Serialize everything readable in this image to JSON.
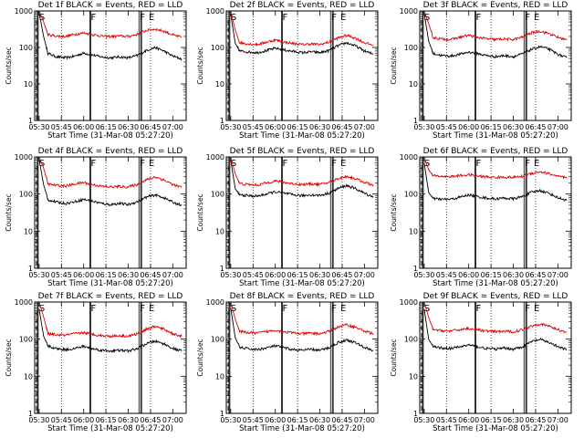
{
  "colors": {
    "events": "#000000",
    "lld": "#e00000",
    "frame": "#000000"
  },
  "chart_data": [
    {
      "type": "line",
      "title": "Det 1f BLACK = Events, RED = LLD",
      "xlabel": "Start Time (31-Mar-08 05:27:20)",
      "ylabel": "Counts/sec",
      "x_ticks": [
        "05:30",
        "05:45",
        "06:00",
        "06:15",
        "06:30",
        "06:45",
        "07:00"
      ],
      "y_ticks": [
        "1",
        "10",
        "100",
        "1000"
      ],
      "y_scale": "log",
      "ylim": [
        1,
        1000
      ],
      "letters": [
        "S",
        "F",
        "F",
        "E"
      ],
      "series": [
        {
          "color": "black",
          "x": [
            5.5,
            5.55,
            5.6,
            5.7,
            5.8,
            5.9,
            6.0,
            6.1,
            6.2,
            6.3,
            6.4,
            6.5,
            6.6,
            6.7,
            6.8,
            6.9,
            7.0,
            7.1
          ],
          "y": [
            900,
            200,
            68,
            55,
            52,
            58,
            70,
            62,
            55,
            52,
            55,
            52,
            60,
            82,
            100,
            80,
            58,
            48
          ]
        },
        {
          "color": "red",
          "x": [
            5.5,
            5.55,
            5.6,
            5.7,
            5.8,
            5.9,
            6.0,
            6.1,
            6.2,
            6.3,
            6.4,
            6.5,
            6.6,
            6.7,
            6.8,
            6.9,
            7.0,
            7.1
          ],
          "y": [
            1000,
            500,
            220,
            205,
            200,
            230,
            250,
            225,
            205,
            200,
            205,
            200,
            230,
            290,
            320,
            280,
            220,
            190
          ]
        }
      ]
    },
    {
      "type": "line",
      "title": "Det 2f BLACK = Events, RED = LLD",
      "xlabel": "Start Time (31-Mar-08 05:27:20)",
      "ylabel": "Counts/sec",
      "x_ticks": [
        "05:30",
        "05:45",
        "06:00",
        "06:15",
        "06:30",
        "06:45",
        "07:00"
      ],
      "y_ticks": [
        "1",
        "10",
        "100",
        "1000"
      ],
      "y_scale": "log",
      "ylim": [
        1,
        1000
      ],
      "letters": [
        "S",
        "F",
        "F",
        "E"
      ],
      "series": [
        {
          "color": "black",
          "x": [
            5.5,
            5.55,
            5.6,
            5.7,
            5.8,
            5.9,
            6.0,
            6.1,
            6.2,
            6.3,
            6.4,
            6.5,
            6.6,
            6.7,
            6.8,
            6.9,
            7.0,
            7.1
          ],
          "y": [
            800,
            130,
            80,
            75,
            72,
            82,
            95,
            85,
            78,
            72,
            76,
            72,
            82,
            110,
            135,
            110,
            80,
            65
          ]
        },
        {
          "color": "red",
          "x": [
            5.5,
            5.55,
            5.6,
            5.7,
            5.8,
            5.9,
            6.0,
            6.1,
            6.2,
            6.3,
            6.4,
            6.5,
            6.6,
            6.7,
            6.8,
            6.9,
            7.0,
            7.1
          ],
          "y": [
            1000,
            300,
            135,
            125,
            120,
            140,
            160,
            140,
            128,
            120,
            125,
            120,
            140,
            180,
            215,
            180,
            135,
            115
          ]
        }
      ]
    },
    {
      "type": "line",
      "title": "Det 3f BLACK = Events, RED = LLD",
      "xlabel": "Start Time (31-Mar-08 05:27:20)",
      "ylabel": "Counts/sec",
      "x_ticks": [
        "05:30",
        "05:45",
        "06:00",
        "06:15",
        "06:30",
        "06:45",
        "07:00"
      ],
      "y_ticks": [
        "1",
        "10",
        "100",
        "1000"
      ],
      "y_scale": "log",
      "ylim": [
        1,
        1000
      ],
      "letters": [
        "S",
        "F",
        "F",
        "E"
      ],
      "series": [
        {
          "color": "black",
          "x": [
            5.5,
            5.55,
            5.6,
            5.7,
            5.8,
            5.9,
            6.0,
            6.1,
            6.2,
            6.3,
            6.4,
            6.5,
            6.6,
            6.7,
            6.8,
            6.9,
            7.0,
            7.1
          ],
          "y": [
            850,
            150,
            68,
            60,
            58,
            65,
            75,
            68,
            60,
            56,
            60,
            56,
            66,
            88,
            105,
            90,
            65,
            52
          ]
        },
        {
          "color": "red",
          "x": [
            5.5,
            5.55,
            5.6,
            5.7,
            5.8,
            5.9,
            6.0,
            6.1,
            6.2,
            6.3,
            6.4,
            6.5,
            6.6,
            6.7,
            6.8,
            6.9,
            7.0,
            7.1
          ],
          "y": [
            1000,
            450,
            185,
            170,
            165,
            190,
            215,
            190,
            172,
            165,
            170,
            165,
            190,
            250,
            280,
            240,
            190,
            160
          ]
        }
      ]
    },
    {
      "type": "line",
      "title": "Det 4f BLACK = Events, RED = LLD",
      "xlabel": "Start Time (31-Mar-08 05:27:20)",
      "ylabel": "Counts/sec",
      "x_ticks": [
        "05:30",
        "05:45",
        "06:00",
        "06:15",
        "06:30",
        "06:45",
        "07:00"
      ],
      "y_ticks": [
        "1",
        "10",
        "100",
        "1000"
      ],
      "y_scale": "log",
      "ylim": [
        1,
        1000
      ],
      "letters": [
        "S",
        "F",
        "F",
        "E"
      ],
      "series": [
        {
          "color": "black",
          "x": [
            5.5,
            5.55,
            5.6,
            5.7,
            5.8,
            5.9,
            6.0,
            6.1,
            6.2,
            6.3,
            6.4,
            6.5,
            6.6,
            6.7,
            6.8,
            6.9,
            7.0,
            7.1
          ],
          "y": [
            850,
            180,
            70,
            60,
            56,
            62,
            72,
            64,
            56,
            52,
            56,
            52,
            62,
            82,
            95,
            80,
            60,
            50
          ]
        },
        {
          "color": "red",
          "x": [
            5.5,
            5.55,
            5.6,
            5.7,
            5.8,
            5.9,
            6.0,
            6.1,
            6.2,
            6.3,
            6.4,
            6.5,
            6.6,
            6.7,
            6.8,
            6.9,
            7.0,
            7.1
          ],
          "y": [
            1000,
            500,
            185,
            170,
            165,
            185,
            205,
            180,
            162,
            155,
            160,
            155,
            180,
            240,
            290,
            240,
            180,
            150
          ]
        }
      ]
    },
    {
      "type": "line",
      "title": "Det 5f BLACK = Events, RED = LLD",
      "xlabel": "Start Time (31-Mar-08 05:27:20)",
      "ylabel": "Counts/sec",
      "x_ticks": [
        "05:30",
        "05:45",
        "06:00",
        "06:15",
        "06:30",
        "06:45",
        "07:00"
      ],
      "y_ticks": [
        "1",
        "10",
        "100",
        "1000"
      ],
      "y_scale": "log",
      "ylim": [
        1,
        1000
      ],
      "letters": [
        "S",
        "F",
        "F",
        "E"
      ],
      "series": [
        {
          "color": "black",
          "x": [
            5.5,
            5.55,
            5.6,
            5.7,
            5.8,
            5.9,
            6.0,
            6.1,
            6.2,
            6.3,
            6.4,
            6.5,
            6.6,
            6.7,
            6.8,
            6.9,
            7.0,
            7.1
          ],
          "y": [
            800,
            140,
            95,
            90,
            88,
            100,
            115,
            105,
            95,
            90,
            95,
            92,
            105,
            140,
            170,
            140,
            105,
            85
          ]
        },
        {
          "color": "red",
          "x": [
            5.5,
            5.55,
            5.6,
            5.7,
            5.8,
            5.9,
            6.0,
            6.1,
            6.2,
            6.3,
            6.4,
            6.5,
            6.6,
            6.7,
            6.8,
            6.9,
            7.0,
            7.1
          ],
          "y": [
            1000,
            350,
            190,
            180,
            175,
            200,
            225,
            205,
            190,
            180,
            188,
            182,
            205,
            260,
            300,
            260,
            205,
            175
          ]
        }
      ]
    },
    {
      "type": "line",
      "title": "Det 6f BLACK = Events, RED = LLD",
      "xlabel": "Start Time (31-Mar-08 05:27:20)",
      "ylabel": "Counts/sec",
      "x_ticks": [
        "05:30",
        "05:45",
        "06:00",
        "06:15",
        "06:30",
        "06:45",
        "07:00"
      ],
      "y_ticks": [
        "1",
        "10",
        "100",
        "1000"
      ],
      "y_scale": "log",
      "ylim": [
        1,
        1000
      ],
      "letters": [
        "S",
        "F",
        "F",
        "E"
      ],
      "series": [
        {
          "color": "black",
          "x": [
            5.5,
            5.55,
            5.6,
            5.7,
            5.8,
            5.9,
            6.0,
            6.1,
            6.2,
            6.3,
            6.4,
            6.5,
            6.6,
            6.7,
            6.8,
            6.9,
            7.0,
            7.1
          ],
          "y": [
            700,
            110,
            75,
            72,
            72,
            82,
            95,
            85,
            78,
            74,
            78,
            74,
            85,
            110,
            125,
            105,
            80,
            68
          ]
        },
        {
          "color": "red",
          "x": [
            5.5,
            5.55,
            5.6,
            5.7,
            5.8,
            5.9,
            6.0,
            6.1,
            6.2,
            6.3,
            6.4,
            6.5,
            6.6,
            6.7,
            6.8,
            6.9,
            7.0,
            7.1
          ],
          "y": [
            1000,
            450,
            310,
            300,
            295,
            315,
            330,
            305,
            290,
            280,
            285,
            280,
            300,
            360,
            400,
            355,
            300,
            270
          ]
        }
      ]
    },
    {
      "type": "line",
      "title": "Det 7f BLACK = Events, RED = LLD",
      "xlabel": "Start Time (31-Mar-08 05:27:20)",
      "ylabel": "Counts/sec",
      "x_ticks": [
        "05:30",
        "05:45",
        "06:00",
        "06:15",
        "06:30",
        "06:45",
        "07:00"
      ],
      "y_ticks": [
        "1",
        "10",
        "100",
        "1000"
      ],
      "y_scale": "log",
      "ylim": [
        1,
        1000
      ],
      "letters": [
        "S",
        "F",
        "F",
        "E"
      ],
      "series": [
        {
          "color": "black",
          "x": [
            5.5,
            5.55,
            5.6,
            5.7,
            5.8,
            5.9,
            6.0,
            6.1,
            6.2,
            6.3,
            6.4,
            6.5,
            6.6,
            6.7,
            6.8,
            6.9,
            7.0,
            7.1
          ],
          "y": [
            650,
            120,
            65,
            55,
            52,
            56,
            64,
            55,
            50,
            48,
            50,
            48,
            55,
            75,
            88,
            75,
            56,
            48
          ]
        },
        {
          "color": "red",
          "x": [
            5.5,
            5.55,
            5.6,
            5.7,
            5.8,
            5.9,
            6.0,
            6.1,
            6.2,
            6.3,
            6.4,
            6.5,
            6.6,
            6.7,
            6.8,
            6.9,
            7.0,
            7.1
          ],
          "y": [
            1000,
            400,
            140,
            130,
            128,
            140,
            150,
            135,
            125,
            120,
            125,
            120,
            138,
            185,
            220,
            185,
            140,
            120
          ]
        }
      ]
    },
    {
      "type": "line",
      "title": "Det 8f BLACK = Events, RED = LLD",
      "xlabel": "Start Time (31-Mar-08 05:27:20)",
      "ylabel": "Counts/sec",
      "x_ticks": [
        "05:30",
        "05:45",
        "06:00",
        "06:15",
        "06:30",
        "06:45",
        "07:00"
      ],
      "y_ticks": [
        "1",
        "10",
        "100",
        "1000"
      ],
      "y_scale": "log",
      "ylim": [
        1,
        1000
      ],
      "letters": [
        "S",
        "F",
        "F",
        "E"
      ],
      "series": [
        {
          "color": "black",
          "x": [
            5.5,
            5.55,
            5.6,
            5.7,
            5.8,
            5.9,
            6.0,
            6.1,
            6.2,
            6.3,
            6.4,
            6.5,
            6.6,
            6.7,
            6.8,
            6.9,
            7.0,
            7.1
          ],
          "y": [
            700,
            110,
            60,
            55,
            52,
            58,
            66,
            58,
            52,
            50,
            53,
            50,
            58,
            80,
            95,
            80,
            60,
            50
          ]
        },
        {
          "color": "red",
          "x": [
            5.5,
            5.55,
            5.6,
            5.7,
            5.8,
            5.9,
            6.0,
            6.1,
            6.2,
            6.3,
            6.4,
            6.5,
            6.6,
            6.7,
            6.8,
            6.9,
            7.0,
            7.1
          ],
          "y": [
            1000,
            350,
            160,
            150,
            145,
            160,
            175,
            158,
            148,
            140,
            145,
            140,
            160,
            210,
            245,
            210,
            165,
            140
          ]
        }
      ]
    },
    {
      "type": "line",
      "title": "Det 9f BLACK = Events, RED = LLD",
      "xlabel": "Start Time (31-Mar-08 05:27:20)",
      "ylabel": "Counts/sec",
      "x_ticks": [
        "05:30",
        "05:45",
        "06:00",
        "06:15",
        "06:30",
        "06:45",
        "07:00"
      ],
      "y_ticks": [
        "1",
        "10",
        "100",
        "1000"
      ],
      "y_scale": "log",
      "ylim": [
        1,
        1000
      ],
      "letters": [
        "S",
        "F",
        "F",
        "E"
      ],
      "series": [
        {
          "color": "black",
          "x": [
            5.5,
            5.55,
            5.6,
            5.7,
            5.8,
            5.9,
            6.0,
            6.1,
            6.2,
            6.3,
            6.4,
            6.5,
            6.6,
            6.7,
            6.8,
            6.9,
            7.0,
            7.1
          ],
          "y": [
            650,
            100,
            62,
            58,
            56,
            62,
            70,
            62,
            56,
            54,
            57,
            54,
            62,
            85,
            98,
            82,
            62,
            52
          ]
        },
        {
          "color": "red",
          "x": [
            5.5,
            5.55,
            5.6,
            5.7,
            5.8,
            5.9,
            6.0,
            6.1,
            6.2,
            6.3,
            6.4,
            6.5,
            6.6,
            6.7,
            6.8,
            6.9,
            7.0,
            7.1
          ],
          "y": [
            1000,
            380,
            180,
            170,
            165,
            180,
            195,
            178,
            165,
            158,
            162,
            158,
            178,
            225,
            260,
            225,
            180,
            155
          ]
        }
      ]
    }
  ]
}
